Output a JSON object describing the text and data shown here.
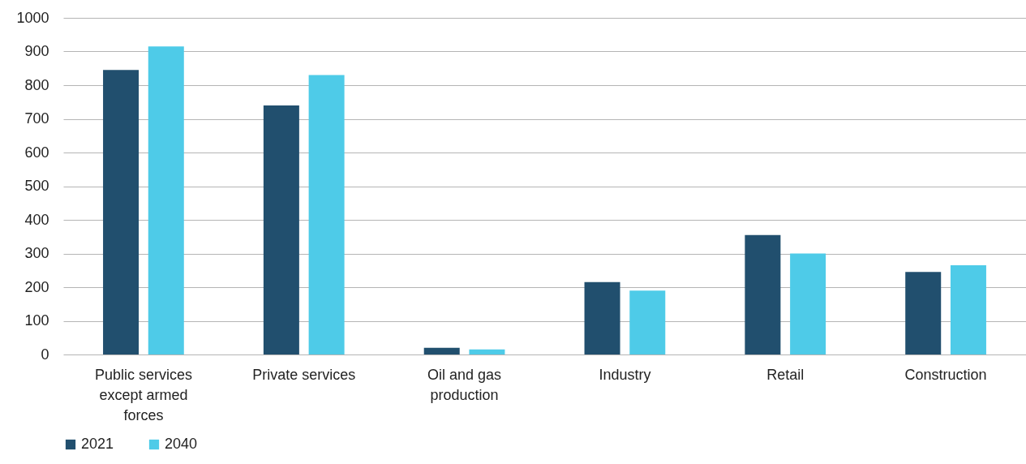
{
  "chart_data": {
    "type": "bar",
    "categories": [
      "Public services except armed forces",
      "Private services",
      "Oil and gas production",
      "Industry",
      "Retail",
      "Construction"
    ],
    "series": [
      {
        "name": "2021",
        "color": "#214f6e",
        "values": [
          845,
          740,
          20,
          215,
          355,
          245
        ]
      },
      {
        "name": "2040",
        "color": "#4ecbe8",
        "values": [
          915,
          830,
          15,
          190,
          300,
          265
        ]
      }
    ],
    "ylim": [
      0,
      1000
    ],
    "yticks": [
      0,
      100,
      200,
      300,
      400,
      500,
      600,
      700,
      800,
      900,
      1000
    ],
    "grid": "y",
    "legend": "bottom"
  }
}
